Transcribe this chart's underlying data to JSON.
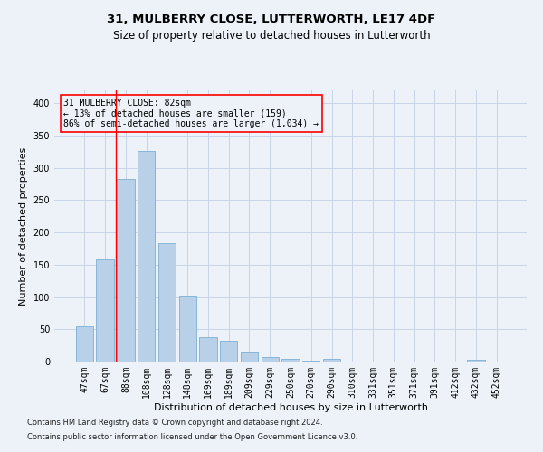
{
  "title": "31, MULBERRY CLOSE, LUTTERWORTH, LE17 4DF",
  "subtitle": "Size of property relative to detached houses in Lutterworth",
  "xlabel": "Distribution of detached houses by size in Lutterworth",
  "ylabel": "Number of detached properties",
  "categories": [
    "47sqm",
    "67sqm",
    "88sqm",
    "108sqm",
    "128sqm",
    "148sqm",
    "169sqm",
    "189sqm",
    "209sqm",
    "229sqm",
    "250sqm",
    "270sqm",
    "290sqm",
    "310sqm",
    "331sqm",
    "351sqm",
    "371sqm",
    "391sqm",
    "412sqm",
    "432sqm",
    "452sqm"
  ],
  "values": [
    55,
    158,
    283,
    326,
    184,
    102,
    38,
    32,
    16,
    7,
    4,
    2,
    4,
    0,
    0,
    0,
    0,
    0,
    0,
    3,
    0
  ],
  "bar_color": "#b8d0e8",
  "bar_edgecolor": "#7bafd4",
  "grid_color": "#c8d4e8",
  "background_color": "#edf2f9",
  "ylim": [
    0,
    420
  ],
  "yticks": [
    0,
    50,
    100,
    150,
    200,
    250,
    300,
    350,
    400
  ],
  "red_line_x": 1.5,
  "annotation_text": "31 MULBERRY CLOSE: 82sqm\n← 13% of detached houses are smaller (159)\n86% of semi-detached houses are larger (1,034) →",
  "footnote1": "Contains HM Land Registry data © Crown copyright and database right 2024.",
  "footnote2": "Contains public sector information licensed under the Open Government Licence v3.0.",
  "title_fontsize": 9.5,
  "subtitle_fontsize": 8.5,
  "xlabel_fontsize": 8,
  "ylabel_fontsize": 8,
  "tick_fontsize": 7,
  "annot_fontsize": 7,
  "footnote_fontsize": 6
}
